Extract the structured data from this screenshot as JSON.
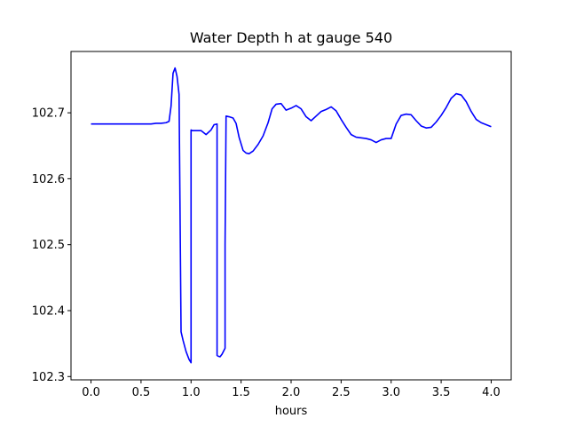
{
  "chart_data": {
    "type": "line",
    "title": "Water Depth h at gauge 540",
    "xlabel": "hours",
    "ylabel": "",
    "xlim": [
      -0.2,
      4.2
    ],
    "ylim": [
      102.295,
      102.793
    ],
    "xticks": [
      0.0,
      0.5,
      1.0,
      1.5,
      2.0,
      2.5,
      3.0,
      3.5,
      4.0
    ],
    "xtick_labels": [
      "0.0",
      "0.5",
      "1.0",
      "1.5",
      "2.0",
      "2.5",
      "3.0",
      "3.5",
      "4.0"
    ],
    "yticks": [
      102.3,
      102.4,
      102.5,
      102.6,
      102.7
    ],
    "ytick_labels": [
      "102.3",
      "102.4",
      "102.5",
      "102.6",
      "102.7"
    ],
    "grid": false,
    "series": [
      {
        "color": "#0000ff",
        "x": [
          0.0,
          0.1,
          0.2,
          0.3,
          0.4,
          0.5,
          0.6,
          0.65,
          0.7,
          0.75,
          0.78,
          0.8,
          0.82,
          0.84,
          0.86,
          0.88,
          0.89,
          0.9,
          0.92,
          0.95,
          0.98,
          1.0,
          1.0,
          1.01,
          1.05,
          1.1,
          1.15,
          1.2,
          1.23,
          1.26,
          1.26,
          1.27,
          1.29,
          1.31,
          1.34,
          1.34,
          1.35,
          1.38,
          1.42,
          1.45,
          1.48,
          1.52,
          1.55,
          1.58,
          1.62,
          1.67,
          1.72,
          1.77,
          1.81,
          1.85,
          1.9,
          1.95,
          2.0,
          2.05,
          2.1,
          2.15,
          2.2,
          2.25,
          2.3,
          2.35,
          2.4,
          2.45,
          2.5,
          2.55,
          2.6,
          2.65,
          2.7,
          2.75,
          2.8,
          2.85,
          2.9,
          2.95,
          3.0,
          3.05,
          3.1,
          3.15,
          3.2,
          3.25,
          3.3,
          3.35,
          3.4,
          3.45,
          3.5,
          3.55,
          3.6,
          3.65,
          3.7,
          3.75,
          3.8,
          3.85,
          3.9,
          3.95,
          4.0
        ],
        "y": [
          102.683,
          102.683,
          102.683,
          102.683,
          102.683,
          102.683,
          102.683,
          102.684,
          102.684,
          102.685,
          102.687,
          102.71,
          102.76,
          102.768,
          102.755,
          102.728,
          102.55,
          102.368,
          102.355,
          102.338,
          102.326,
          102.321,
          102.674,
          102.673,
          102.673,
          102.673,
          102.667,
          102.674,
          102.682,
          102.683,
          102.332,
          102.331,
          102.33,
          102.334,
          102.343,
          102.5,
          102.695,
          102.694,
          102.692,
          102.684,
          102.663,
          102.643,
          102.639,
          102.638,
          102.642,
          102.652,
          102.665,
          102.685,
          102.706,
          102.713,
          102.714,
          102.704,
          102.707,
          102.711,
          102.706,
          102.694,
          102.688,
          102.695,
          102.702,
          102.705,
          102.709,
          102.703,
          102.69,
          102.678,
          102.667,
          102.663,
          102.662,
          102.661,
          102.659,
          102.655,
          102.659,
          102.661,
          102.661,
          102.683,
          102.696,
          102.698,
          102.697,
          102.688,
          102.68,
          102.677,
          102.678,
          102.686,
          102.696,
          102.708,
          102.722,
          102.729,
          102.727,
          102.717,
          102.702,
          102.69,
          102.685,
          102.682,
          102.679
        ]
      }
    ]
  }
}
